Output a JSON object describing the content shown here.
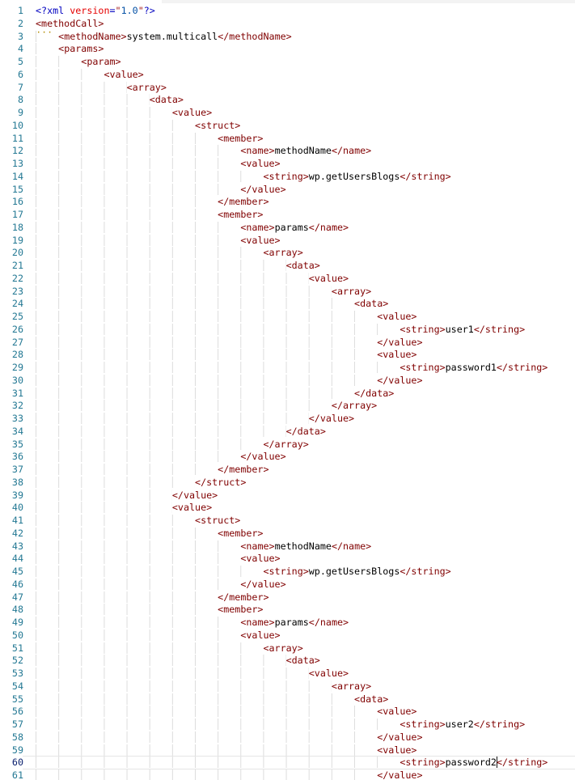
{
  "window": {
    "kind": "code-editor",
    "theme": "light",
    "language": "xml"
  },
  "editor": {
    "active_line": 60,
    "cursor": {
      "line": 60,
      "col": 81
    },
    "hint": {
      "line": 2,
      "dots": "···"
    },
    "gutter": {
      "first_line": 1,
      "last_line": 61
    },
    "colors": {
      "tag": "#800000",
      "text": "#010101",
      "pi": "#0000c0",
      "attr_name": "#e50000",
      "quote": "#a31515",
      "string_value": "#0451a5",
      "line_number": "#237893",
      "line_number_active": "#0b216f",
      "indent_guide": "#dcdcdc",
      "current_line_border": "#e5e5e5",
      "tab_strip_bg": "#f3f3f3",
      "hint": "#b28b00"
    },
    "indent_size": 4,
    "lines": [
      [
        0,
        "<?xml version=\"1.0\"?>"
      ],
      [
        0,
        "<methodCall>"
      ],
      [
        1,
        "<methodName>system.multicall</methodName>"
      ],
      [
        1,
        "<params>"
      ],
      [
        2,
        "<param>"
      ],
      [
        3,
        "<value>"
      ],
      [
        4,
        "<array>"
      ],
      [
        5,
        "<data>"
      ],
      [
        6,
        "<value>"
      ],
      [
        7,
        "<struct>"
      ],
      [
        8,
        "<member>"
      ],
      [
        9,
        "<name>methodName</name>"
      ],
      [
        9,
        "<value>"
      ],
      [
        10,
        "<string>wp.getUsersBlogs</string>"
      ],
      [
        9,
        "</value>"
      ],
      [
        8,
        "</member>"
      ],
      [
        8,
        "<member>"
      ],
      [
        9,
        "<name>params</name>"
      ],
      [
        9,
        "<value>"
      ],
      [
        10,
        "<array>"
      ],
      [
        11,
        "<data>"
      ],
      [
        12,
        "<value>"
      ],
      [
        13,
        "<array>"
      ],
      [
        14,
        "<data>"
      ],
      [
        15,
        "<value>"
      ],
      [
        16,
        "<string>user1</string>"
      ],
      [
        15,
        "</value>"
      ],
      [
        15,
        "<value>"
      ],
      [
        16,
        "<string>password1</string>"
      ],
      [
        15,
        "</value>"
      ],
      [
        14,
        "</data>"
      ],
      [
        13,
        "</array>"
      ],
      [
        12,
        "</value>"
      ],
      [
        11,
        "</data>"
      ],
      [
        10,
        "</array>"
      ],
      [
        9,
        "</value>"
      ],
      [
        8,
        "</member>"
      ],
      [
        7,
        "</struct>"
      ],
      [
        6,
        "</value>"
      ],
      [
        6,
        "<value>"
      ],
      [
        7,
        "<struct>"
      ],
      [
        8,
        "<member>"
      ],
      [
        9,
        "<name>methodName</name>"
      ],
      [
        9,
        "<value>"
      ],
      [
        10,
        "<string>wp.getUsersBlogs</string>"
      ],
      [
        9,
        "</value>"
      ],
      [
        8,
        "</member>"
      ],
      [
        8,
        "<member>"
      ],
      [
        9,
        "<name>params</name>"
      ],
      [
        9,
        "<value>"
      ],
      [
        10,
        "<array>"
      ],
      [
        11,
        "<data>"
      ],
      [
        12,
        "<value>"
      ],
      [
        13,
        "<array>"
      ],
      [
        14,
        "<data>"
      ],
      [
        15,
        "<value>"
      ],
      [
        16,
        "<string>user2</string>"
      ],
      [
        15,
        "</value>"
      ],
      [
        15,
        "<value>"
      ],
      [
        16,
        "<string>password2</string>"
      ],
      [
        15,
        "</value>"
      ]
    ]
  }
}
